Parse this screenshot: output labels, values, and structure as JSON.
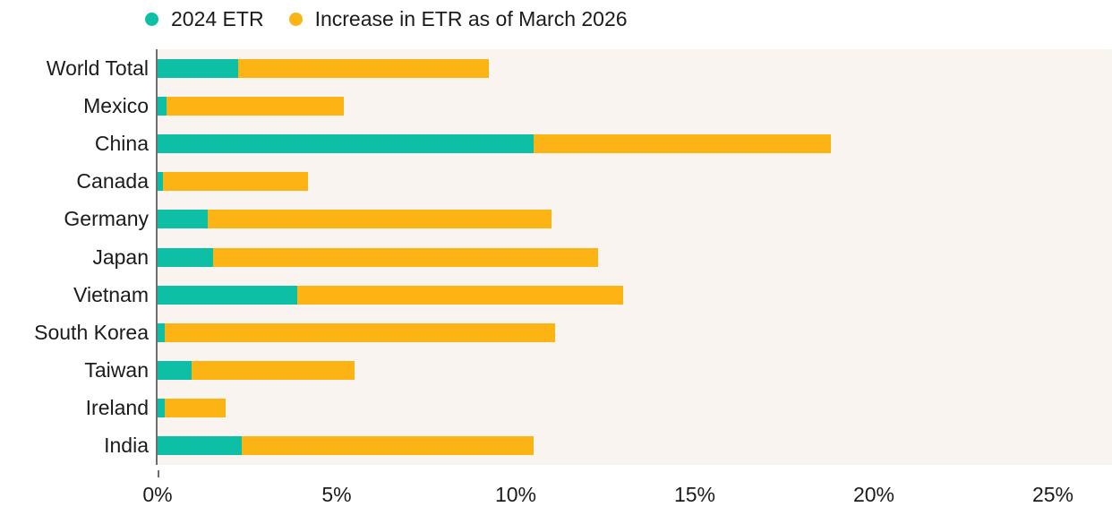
{
  "legend": {
    "items": [
      {
        "label": "2024 ETR",
        "color": "#0dbfa4"
      },
      {
        "label": "Increase in ETR as of March 2026",
        "color": "#fbb414"
      }
    ]
  },
  "chart_data": {
    "type": "bar",
    "orientation": "horizontal",
    "stacked": true,
    "title": "",
    "xlabel": "",
    "ylabel": "",
    "grid": false,
    "legend_position": "top",
    "categories": [
      "World Total",
      "Mexico",
      "China",
      "Canada",
      "Germany",
      "Japan",
      "Vietnam",
      "South Korea",
      "Taiwan",
      "Ireland",
      "India"
    ],
    "series": [
      {
        "name": "2024 ETR",
        "color": "#0dbfa4",
        "values": [
          2.25,
          0.25,
          10.5,
          0.15,
          1.4,
          1.55,
          3.9,
          0.2,
          0.95,
          0.2,
          2.35
        ]
      },
      {
        "name": "Increase in ETR as of March 2026",
        "color": "#fbb414",
        "values": [
          7.0,
          4.95,
          8.3,
          4.05,
          9.6,
          10.75,
          9.1,
          10.9,
          4.55,
          1.7,
          8.15
        ]
      }
    ],
    "stacked_totals": [
      9.25,
      5.2,
      18.8,
      4.2,
      11.0,
      12.3,
      13.0,
      11.1,
      5.5,
      1.9,
      10.5
    ],
    "x_ticks": [
      "0%",
      "5%",
      "10%",
      "15%",
      "20%",
      "25%"
    ],
    "x_tick_values": [
      0,
      5,
      10,
      15,
      20,
      25
    ],
    "xlim": [
      0,
      26.65
    ],
    "plot_bg_color": "#faf4f1",
    "axis_line_color": "#6e6e6e"
  }
}
